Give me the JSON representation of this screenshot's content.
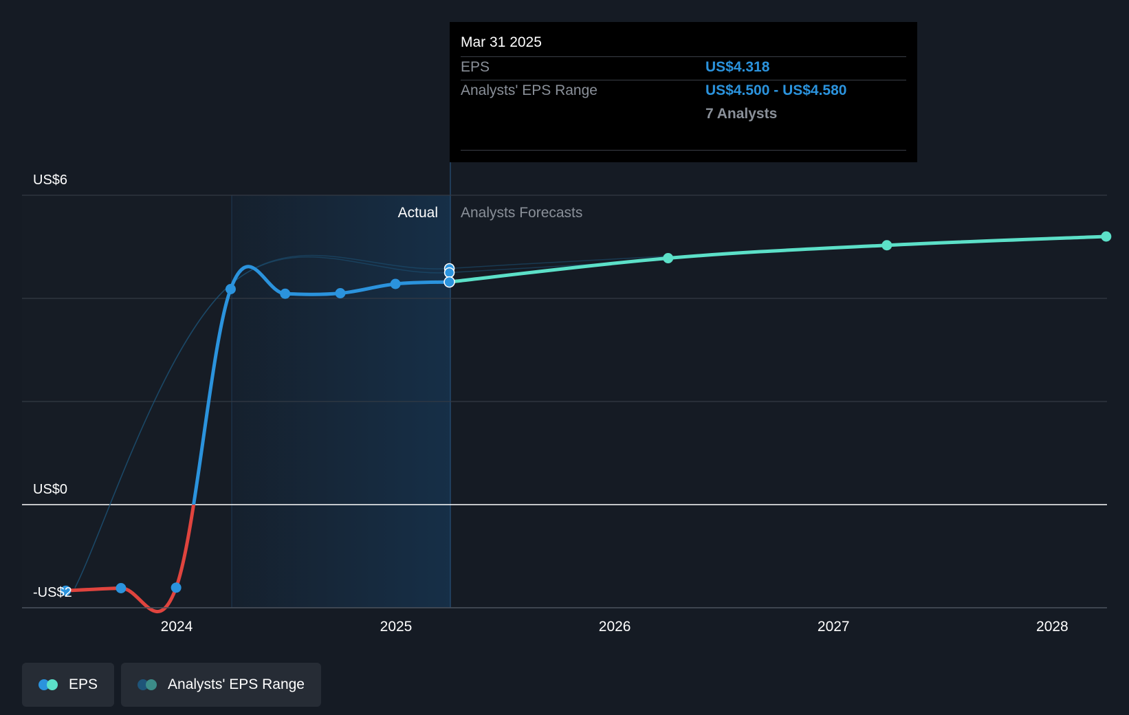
{
  "colors": {
    "background": "#151b24",
    "eps_actual": "#2b93dd",
    "eps_negative": "#e0443e",
    "eps_forecast": "#5ce0c8",
    "range_band": "#1e5479",
    "grid": "#343b45",
    "zero_line": "#ffffff"
  },
  "chart_data": {
    "type": "line",
    "x_axis": {
      "ticks": [
        "2024",
        "2025",
        "2026",
        "2027",
        "2028"
      ],
      "range": [
        "2023-07",
        "2028-03"
      ]
    },
    "y_axis": {
      "labels": [
        "US$6",
        "US$0",
        "-US$2"
      ],
      "range": [
        -2,
        6
      ]
    },
    "region_labels": {
      "actual": "Actual",
      "forecast": "Analysts Forecasts"
    },
    "series": [
      {
        "name": "EPS",
        "kind": "actual",
        "points": [
          {
            "x": "2023-06-30",
            "y": -1.67
          },
          {
            "x": "2023-09-30",
            "y": -1.62
          },
          {
            "x": "2023-12-31",
            "y": -1.61
          },
          {
            "x": "2024-03-31",
            "y": 4.18
          },
          {
            "x": "2024-06-30",
            "y": 4.09
          },
          {
            "x": "2024-09-30",
            "y": 4.1
          },
          {
            "x": "2024-12-31",
            "y": 4.28
          },
          {
            "x": "2025-03-31",
            "y": 4.318
          }
        ]
      },
      {
        "name": "EPS",
        "kind": "forecast",
        "points": [
          {
            "x": "2025-03-31",
            "y": 4.318
          },
          {
            "x": "2026-03-31",
            "y": 4.78
          },
          {
            "x": "2027-03-31",
            "y": 5.03
          },
          {
            "x": "2028-03-31",
            "y": 5.2
          }
        ]
      },
      {
        "name": "Analysts' EPS Range",
        "kind": "range",
        "points": [
          {
            "x": "2023-07-15",
            "y_low": -1.62,
            "y_high": -1.62
          },
          {
            "x": "2024-03-31",
            "y_low": 4.27,
            "y_high": 4.27
          },
          {
            "x": "2025-03-31",
            "y_low": 4.5,
            "y_high": 4.58
          },
          {
            "x": "2026-03-31",
            "y_low": 4.75,
            "y_high": 4.82
          }
        ]
      }
    ]
  },
  "tooltip": {
    "date": "Mar 31 2025",
    "eps_label": "EPS",
    "eps_value": "US$4.318",
    "range_label": "Analysts' EPS Range",
    "range_value": "US$4.500 - US$4.580",
    "analysts": "7 Analysts"
  },
  "legend": [
    {
      "label": "EPS",
      "colors": [
        "#2b93dd",
        "#5ce0c8"
      ]
    },
    {
      "label": "Analysts' EPS Range",
      "colors": [
        "#1e5479",
        "#3c8c88"
      ]
    }
  ]
}
